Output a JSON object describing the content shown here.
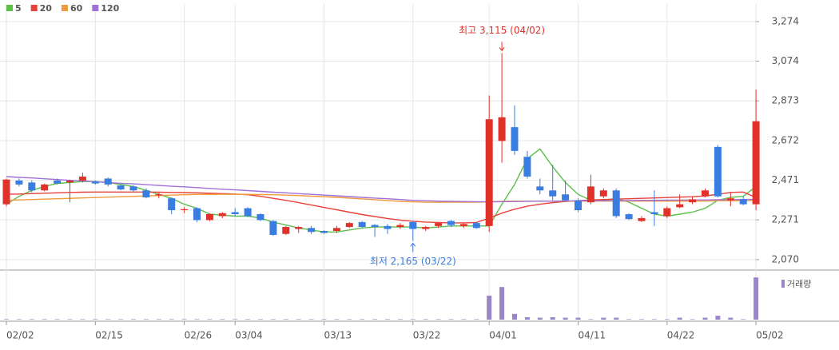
{
  "chart_data": {
    "type": "candlestick",
    "categories": [
      "02/02",
      null,
      null,
      null,
      null,
      null,
      null,
      "02/15",
      null,
      null,
      null,
      null,
      null,
      null,
      "02/26",
      null,
      null,
      null,
      "03/04",
      null,
      null,
      null,
      null,
      null,
      null,
      "03/13",
      null,
      null,
      null,
      null,
      null,
      null,
      "03/22",
      null,
      null,
      null,
      null,
      null,
      "04/01",
      null,
      null,
      null,
      null,
      null,
      null,
      "04/11",
      null,
      null,
      null,
      null,
      null,
      null,
      "04/22",
      null,
      null,
      null,
      null,
      null,
      null,
      "05/02"
    ],
    "open": [
      2350,
      2470,
      2460,
      2420,
      2470,
      2460,
      2470,
      2465,
      2480,
      2445,
      2440,
      2420,
      2395,
      2380,
      2320,
      2330,
      2270,
      2290,
      2310,
      2330,
      2300,
      2265,
      2200,
      2225,
      2230,
      2215,
      2215,
      2235,
      2260,
      2245,
      2240,
      2235,
      2260,
      2225,
      2240,
      2265,
      2240,
      2255,
      2240,
      2670,
      2740,
      2590,
      2440,
      2420,
      2400,
      2370,
      2360,
      2390,
      2420,
      2300,
      2265,
      2310,
      2290,
      2335,
      2360,
      2390,
      2640,
      2370,
      2375,
      2350
    ],
    "high": [
      2480,
      2480,
      2470,
      2455,
      2480,
      2475,
      2510,
      2470,
      2485,
      2450,
      2445,
      2430,
      2410,
      2385,
      2335,
      2335,
      2305,
      2310,
      2330,
      2335,
      2305,
      2270,
      2240,
      2240,
      2240,
      2220,
      2240,
      2260,
      2265,
      2250,
      2250,
      2255,
      2265,
      2240,
      2260,
      2270,
      2255,
      2260,
      2900,
      3115,
      2850,
      2620,
      2480,
      2550,
      2470,
      2380,
      2500,
      2430,
      2430,
      2305,
      2290,
      2420,
      2340,
      2400,
      2390,
      2430,
      2650,
      2410,
      2390,
      2930
    ],
    "low": [
      2340,
      2440,
      2410,
      2415,
      2450,
      2360,
      2460,
      2450,
      2440,
      2420,
      2410,
      2380,
      2380,
      2300,
      2305,
      2260,
      2265,
      2280,
      2290,
      2285,
      2265,
      2190,
      2195,
      2205,
      2200,
      2200,
      2205,
      2230,
      2230,
      2185,
      2200,
      2225,
      2165,
      2215,
      2230,
      2235,
      2230,
      2225,
      2210,
      2560,
      2600,
      2480,
      2400,
      2370,
      2365,
      2310,
      2350,
      2380,
      2280,
      2270,
      2260,
      2240,
      2280,
      2330,
      2350,
      2385,
      2385,
      2340,
      2345,
      2320
    ],
    "close": [
      2475,
      2450,
      2420,
      2450,
      2455,
      2470,
      2490,
      2455,
      2450,
      2425,
      2420,
      2385,
      2400,
      2320,
      2325,
      2270,
      2300,
      2305,
      2300,
      2290,
      2270,
      2195,
      2235,
      2235,
      2210,
      2205,
      2230,
      2255,
      2235,
      2235,
      2225,
      2245,
      2225,
      2235,
      2255,
      2245,
      2250,
      2230,
      2780,
      2790,
      2620,
      2490,
      2420,
      2390,
      2370,
      2320,
      2440,
      2420,
      2290,
      2275,
      2280,
      2300,
      2330,
      2350,
      2375,
      2420,
      2390,
      2380,
      2350,
      2770
    ],
    "up_color": "#e0312a",
    "down_color": "#3a7de0",
    "ylim": [
      2017,
      3363
    ],
    "yticks": [
      {
        "value": 2070,
        "label": "2,070"
      },
      {
        "value": 2271,
        "label": "2,271"
      },
      {
        "value": 2471,
        "label": "2,471"
      },
      {
        "value": 2672,
        "label": "2,672"
      },
      {
        "value": 2873,
        "label": "2,873"
      },
      {
        "value": 3074,
        "label": "3,074"
      },
      {
        "value": 3274,
        "label": "3,274"
      }
    ],
    "grid": true,
    "moving_averages": [
      {
        "name": "5",
        "color": "#5cbf4a",
        "values": [
          2350,
          2390,
          2420,
          2440,
          2455,
          2460,
          2465,
          2465,
          2460,
          2450,
          2440,
          2420,
          2400,
          2380,
          2350,
          2330,
          2300,
          2295,
          2290,
          2290,
          2280,
          2260,
          2245,
          2230,
          2220,
          2210,
          2210,
          2220,
          2230,
          2235,
          2235,
          2235,
          2235,
          2230,
          2235,
          2240,
          2240,
          2240,
          2240,
          2350,
          2450,
          2580,
          2630,
          2540,
          2460,
          2400,
          2370,
          2370,
          2380,
          2360,
          2330,
          2300,
          2290,
          2300,
          2310,
          2330,
          2370,
          2385,
          2390,
          2440
        ]
      },
      {
        "name": "20",
        "color": "#e8413a",
        "values": [
          2400,
          2402,
          2404,
          2406,
          2408,
          2410,
          2411,
          2412,
          2412,
          2412,
          2412,
          2412,
          2411,
          2410,
          2409,
          2408,
          2406,
          2404,
          2402,
          2398,
          2390,
          2380,
          2370,
          2358,
          2346,
          2334,
          2322,
          2310,
          2298,
          2288,
          2278,
          2270,
          2264,
          2260,
          2258,
          2256,
          2256,
          2258,
          2280,
          2305,
          2325,
          2340,
          2350,
          2358,
          2364,
          2368,
          2372,
          2374,
          2376,
          2378,
          2380,
          2382,
          2384,
          2386,
          2388,
          2392,
          2400,
          2410,
          2412,
          2385
        ]
      },
      {
        "name": "60",
        "color": "#f09a3a",
        "values": [
          2370,
          2372,
          2374,
          2376,
          2378,
          2380,
          2382,
          2384,
          2386,
          2388,
          2390,
          2392,
          2394,
          2396,
          2398,
          2400,
          2400,
          2400,
          2400,
          2400,
          2399,
          2398,
          2396,
          2394,
          2391,
          2388,
          2385,
          2381,
          2377,
          2373,
          2369,
          2365,
          2362,
          2360,
          2360,
          2360,
          2360,
          2360,
          2362,
          2365,
          2366,
          2366,
          2366,
          2366,
          2366,
          2366,
          2366,
          2366,
          2366,
          2366,
          2366,
          2366,
          2366,
          2366,
          2366,
          2366,
          2368,
          2368,
          2368,
          2370
        ]
      },
      {
        "name": "120",
        "color": "#a070d8",
        "values": [
          2490,
          2486,
          2483,
          2479,
          2475,
          2471,
          2468,
          2464,
          2460,
          2456,
          2453,
          2449,
          2445,
          2441,
          2438,
          2434,
          2430,
          2426,
          2423,
          2419,
          2415,
          2411,
          2408,
          2404,
          2400,
          2396,
          2393,
          2389,
          2385,
          2381,
          2378,
          2374,
          2370,
          2368,
          2366,
          2365,
          2364,
          2363,
          2362,
          2363,
          2364,
          2365,
          2366,
          2366,
          2367,
          2367,
          2368,
          2368,
          2369,
          2369,
          2370,
          2370,
          2371,
          2371,
          2372,
          2372,
          2373,
          2373,
          2374,
          2375
        ]
      }
    ],
    "volume": {
      "name": "거래량",
      "color": "#9b85c9",
      "ylim": [
        0,
        100
      ],
      "values": [
        1,
        1,
        1,
        1,
        1,
        1,
        1,
        1,
        1,
        1,
        1,
        1,
        1,
        1,
        1,
        1,
        1,
        1,
        1,
        1,
        1,
        1,
        1,
        1,
        1,
        1,
        1,
        1,
        1,
        1,
        1,
        1,
        1,
        1,
        1,
        1,
        1,
        1,
        50,
        68,
        12,
        5,
        4,
        5,
        4,
        4,
        1,
        4,
        4,
        1,
        1,
        1,
        1,
        4,
        1,
        4,
        8,
        4,
        1,
        88
      ]
    },
    "annotations": [
      {
        "text": "최고 3,115 (04/02)",
        "index": 39,
        "value": 3115,
        "color": "#e0312a"
      },
      {
        "text": "최저 2,165 (03/22)",
        "index": 32,
        "value": 2165,
        "color": "#3a7de0"
      }
    ]
  }
}
